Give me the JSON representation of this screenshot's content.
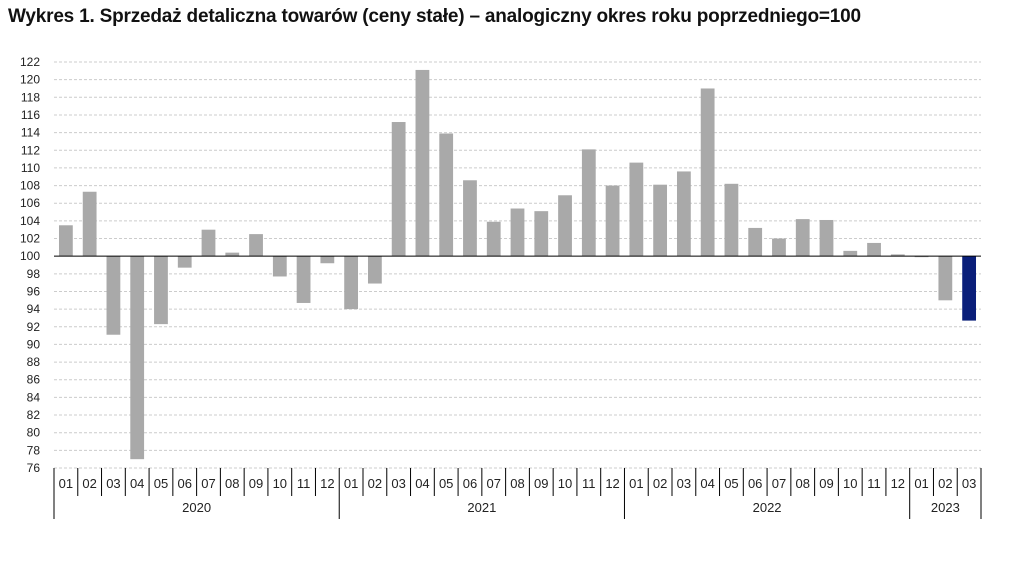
{
  "chart_data": {
    "type": "bar",
    "title": "Wykres 1. Sprzedaż detaliczna towarów (ceny stałe) – analogiczny okres roku poprzedniego=100",
    "baseline": 100,
    "ylim": [
      76,
      122
    ],
    "ytick_step": 2,
    "grid": true,
    "colors": {
      "default": "#a9a9a9",
      "highlight": "#0a1f7a",
      "grid": "#cccccc",
      "axis": "#000000"
    },
    "years": [
      {
        "label": "2020",
        "months": [
          "01",
          "02",
          "03",
          "04",
          "05",
          "06",
          "07",
          "08",
          "09",
          "10",
          "11",
          "12"
        ]
      },
      {
        "label": "2021",
        "months": [
          "01",
          "02",
          "03",
          "04",
          "05",
          "06",
          "07",
          "08",
          "09",
          "10",
          "11",
          "12"
        ]
      },
      {
        "label": "2022",
        "months": [
          "01",
          "02",
          "03",
          "04",
          "05",
          "06",
          "07",
          "08",
          "09",
          "10",
          "11",
          "12"
        ]
      },
      {
        "label": "2023",
        "months": [
          "01",
          "02",
          "03"
        ]
      }
    ],
    "values": [
      103.5,
      107.3,
      91.1,
      77.0,
      92.3,
      98.7,
      103.0,
      100.4,
      102.5,
      97.7,
      94.7,
      99.2,
      94.0,
      96.9,
      115.2,
      121.1,
      113.9,
      108.6,
      103.9,
      105.4,
      105.1,
      106.9,
      112.1,
      108.0,
      110.6,
      108.1,
      109.6,
      119.0,
      108.2,
      103.2,
      102.0,
      104.2,
      104.1,
      100.6,
      101.5,
      100.2,
      99.9,
      95.0,
      92.7
    ],
    "highlight_index": 38
  }
}
